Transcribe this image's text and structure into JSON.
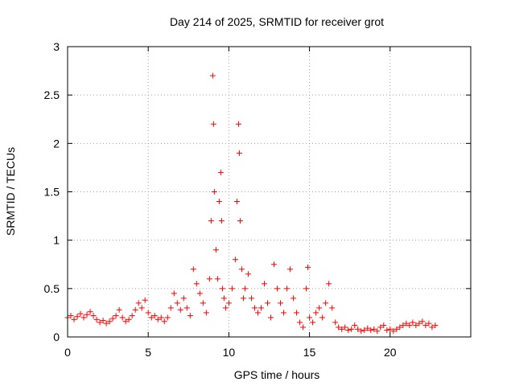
{
  "chart_data": {
    "type": "scatter",
    "title": "Day 214 of 2025, SRMTID for receiver grot",
    "xlabel": "GPS time / hours",
    "ylabel": "SRMTID / TECUs",
    "xlim": [
      0,
      25
    ],
    "ylim": [
      0,
      3
    ],
    "xticks": [
      0,
      5,
      10,
      15,
      20
    ],
    "yticks": [
      0,
      0.5,
      1,
      1.5,
      2,
      2.5,
      3
    ],
    "xtick_labels": [
      "0",
      "5",
      "10",
      "15",
      "20"
    ],
    "ytick_labels": [
      "0",
      "0.5",
      "1",
      "1.5",
      "2",
      "2.5",
      "3"
    ],
    "grid": true,
    "marker": "+",
    "color": "#ff0000",
    "series": [
      {
        "name": "SRMTID",
        "points": [
          [
            0.0,
            0.2
          ],
          [
            0.2,
            0.22
          ],
          [
            0.4,
            0.18
          ],
          [
            0.6,
            0.21
          ],
          [
            0.8,
            0.24
          ],
          [
            1.0,
            0.2
          ],
          [
            1.2,
            0.23
          ],
          [
            1.4,
            0.26
          ],
          [
            1.6,
            0.22
          ],
          [
            1.8,
            0.18
          ],
          [
            2.0,
            0.15
          ],
          [
            2.2,
            0.17
          ],
          [
            2.4,
            0.14
          ],
          [
            2.6,
            0.16
          ],
          [
            2.8,
            0.19
          ],
          [
            3.0,
            0.22
          ],
          [
            3.2,
            0.28
          ],
          [
            3.4,
            0.2
          ],
          [
            3.6,
            0.16
          ],
          [
            3.8,
            0.18
          ],
          [
            4.0,
            0.22
          ],
          [
            4.2,
            0.28
          ],
          [
            4.4,
            0.35
          ],
          [
            4.6,
            0.3
          ],
          [
            4.8,
            0.38
          ],
          [
            5.0,
            0.25
          ],
          [
            5.2,
            0.2
          ],
          [
            5.4,
            0.22
          ],
          [
            5.6,
            0.18
          ],
          [
            5.8,
            0.2
          ],
          [
            6.0,
            0.16
          ],
          [
            6.2,
            0.2
          ],
          [
            6.4,
            0.3
          ],
          [
            6.6,
            0.45
          ],
          [
            6.8,
            0.35
          ],
          [
            7.0,
            0.28
          ],
          [
            7.2,
            0.4
          ],
          [
            7.4,
            0.3
          ],
          [
            7.6,
            0.22
          ],
          [
            7.8,
            0.7
          ],
          [
            8.0,
            0.55
          ],
          [
            8.2,
            0.45
          ],
          [
            8.4,
            0.35
          ],
          [
            8.6,
            0.25
          ],
          [
            8.8,
            0.6
          ],
          [
            8.9,
            1.2
          ],
          [
            9.0,
            2.7
          ],
          [
            9.05,
            2.2
          ],
          [
            9.1,
            1.5
          ],
          [
            9.2,
            0.9
          ],
          [
            9.3,
            0.6
          ],
          [
            9.4,
            1.4
          ],
          [
            9.5,
            1.7
          ],
          [
            9.55,
            1.2
          ],
          [
            9.6,
            0.5
          ],
          [
            9.7,
            0.4
          ],
          [
            9.8,
            0.3
          ],
          [
            10.0,
            0.35
          ],
          [
            10.2,
            0.5
          ],
          [
            10.4,
            0.8
          ],
          [
            10.5,
            1.4
          ],
          [
            10.6,
            2.2
          ],
          [
            10.65,
            1.9
          ],
          [
            10.7,
            1.2
          ],
          [
            10.8,
            0.7
          ],
          [
            10.9,
            0.4
          ],
          [
            11.0,
            0.5
          ],
          [
            11.2,
            0.65
          ],
          [
            11.4,
            0.4
          ],
          [
            11.6,
            0.3
          ],
          [
            11.8,
            0.25
          ],
          [
            12.0,
            0.3
          ],
          [
            12.2,
            0.55
          ],
          [
            12.4,
            0.35
          ],
          [
            12.6,
            0.2
          ],
          [
            12.8,
            0.75
          ],
          [
            13.0,
            0.5
          ],
          [
            13.2,
            0.35
          ],
          [
            13.4,
            0.25
          ],
          [
            13.6,
            0.5
          ],
          [
            13.8,
            0.7
          ],
          [
            14.0,
            0.4
          ],
          [
            14.2,
            0.25
          ],
          [
            14.4,
            0.15
          ],
          [
            14.6,
            0.1
          ],
          [
            14.8,
            0.5
          ],
          [
            14.9,
            0.72
          ],
          [
            15.0,
            0.2
          ],
          [
            15.2,
            0.15
          ],
          [
            15.4,
            0.25
          ],
          [
            15.6,
            0.3
          ],
          [
            15.8,
            0.2
          ],
          [
            16.0,
            0.35
          ],
          [
            16.2,
            0.55
          ],
          [
            16.4,
            0.3
          ],
          [
            16.6,
            0.15
          ],
          [
            16.8,
            0.1
          ],
          [
            17.0,
            0.08
          ],
          [
            17.2,
            0.1
          ],
          [
            17.4,
            0.07
          ],
          [
            17.6,
            0.08
          ],
          [
            17.8,
            0.12
          ],
          [
            18.0,
            0.08
          ],
          [
            18.2,
            0.06
          ],
          [
            18.4,
            0.07
          ],
          [
            18.6,
            0.09
          ],
          [
            18.8,
            0.07
          ],
          [
            19.0,
            0.08
          ],
          [
            19.2,
            0.06
          ],
          [
            19.4,
            0.1
          ],
          [
            19.6,
            0.12
          ],
          [
            19.8,
            0.07
          ],
          [
            20.0,
            0.08
          ],
          [
            20.2,
            0.06
          ],
          [
            20.4,
            0.08
          ],
          [
            20.6,
            0.1
          ],
          [
            20.8,
            0.12
          ],
          [
            21.0,
            0.14
          ],
          [
            21.2,
            0.12
          ],
          [
            21.4,
            0.15
          ],
          [
            21.6,
            0.12
          ],
          [
            21.8,
            0.14
          ],
          [
            22.0,
            0.16
          ],
          [
            22.2,
            0.12
          ],
          [
            22.4,
            0.14
          ],
          [
            22.6,
            0.1
          ],
          [
            22.8,
            0.12
          ]
        ]
      }
    ]
  }
}
